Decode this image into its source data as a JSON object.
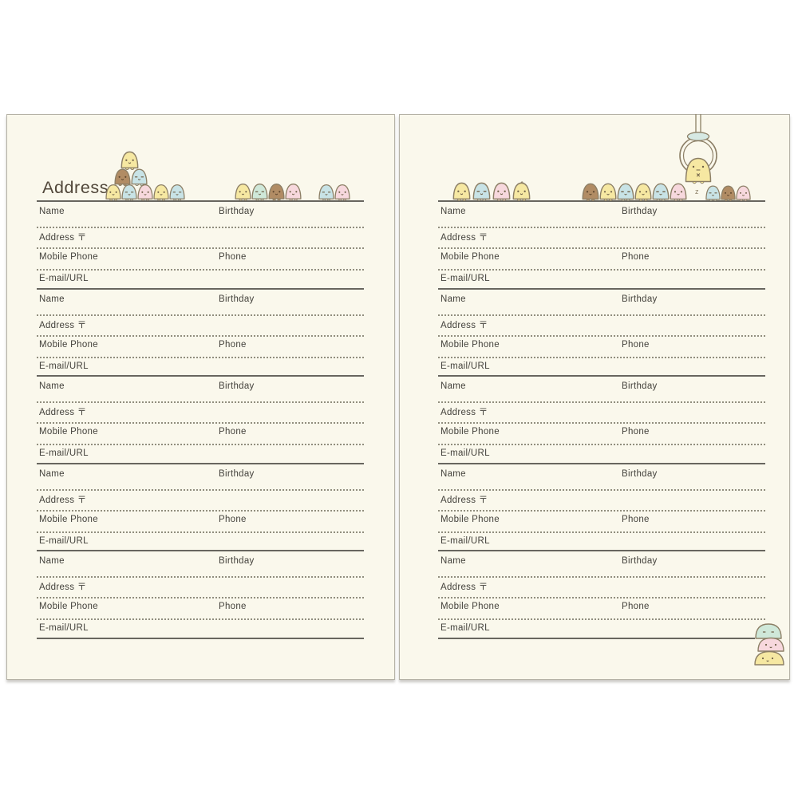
{
  "page_title": "Address",
  "labels": {
    "name": "Name",
    "birthday": "Birthday",
    "address": "Address 〒",
    "mobile_phone": "Mobile Phone",
    "phone": "Phone",
    "email": "E-mail/URL"
  },
  "structure": {
    "entries_per_page": 5,
    "pages": 2
  },
  "colors": {
    "page_background": "#faf8ec",
    "page_border": "#b5b2a6",
    "rule_solid": "#68665f",
    "rule_dotted": "#918e7e",
    "label_text": "#44423c",
    "title_text": "#51473a"
  },
  "characters": {
    "outline": "#8c7f66",
    "face_color": "#6f6148",
    "face_on_brown": "#5a432b",
    "palette": {
      "yellow": "#f6e8a2",
      "chick": "#f6e8a2",
      "blue": "#c8e3e6",
      "pink": "#f7d8dd",
      "brown": "#b18c64",
      "mint": "#cfe8d9"
    },
    "left_groups": [
      {
        "name": "tapioca-pyramid-bottom-row",
        "colors": [
          "yellow",
          "blue",
          "pink",
          "yellow",
          "blue"
        ]
      },
      {
        "name": "tapioca-pyramid-middle-row",
        "colors": [
          "brown",
          "blue"
        ]
      },
      {
        "name": "tapioca-pyramid-top",
        "colors": [
          "yellow"
        ]
      },
      {
        "name": "tapioca-row",
        "colors": [
          "yellow",
          "mint",
          "brown",
          "pink"
        ]
      },
      {
        "name": "tapioca-pair",
        "colors": [
          "blue",
          "pink"
        ]
      }
    ],
    "right_groups": [
      {
        "name": "tapioca-row",
        "colors": [
          "yellow",
          "blue",
          "pink",
          "chick"
        ]
      },
      {
        "name": "tapioca-row",
        "colors": [
          "brown",
          "yellow",
          "blue",
          "yellow",
          "blue",
          "pink"
        ]
      },
      {
        "name": "tapioca-row",
        "colors": [
          "blue",
          "brown",
          "pink"
        ]
      }
    ],
    "claw": {
      "cap_color": "#d6e9e3",
      "character_color": "yellow",
      "mark": "z"
    },
    "corner_stack": {
      "colors": [
        "mint",
        "pink",
        "yellow"
      ]
    }
  }
}
